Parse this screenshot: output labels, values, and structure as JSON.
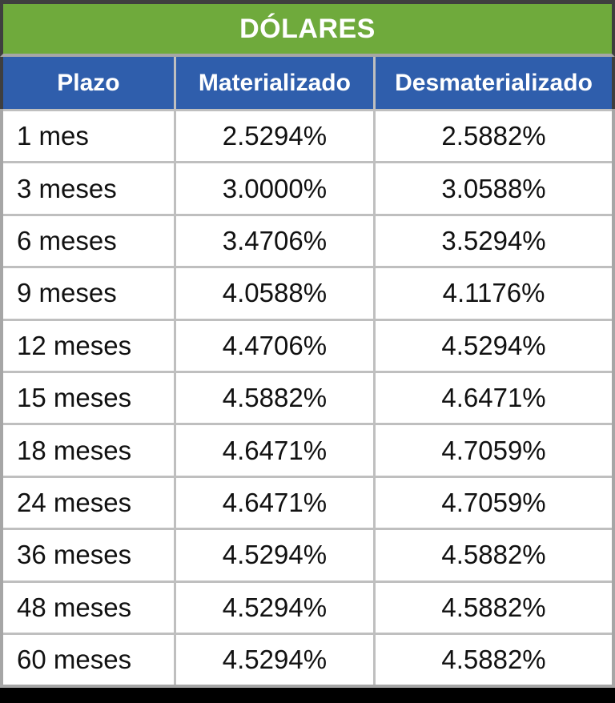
{
  "title": "DÓLARES",
  "columns": {
    "plazo": "Plazo",
    "materializado": "Materializado",
    "desmaterializado": "Desmaterializado"
  },
  "rows": [
    {
      "plazo": "1 mes",
      "materializado": "2.5294%",
      "desmaterializado": "2.5882%"
    },
    {
      "plazo": "3 meses",
      "materializado": "3.0000%",
      "desmaterializado": "3.0588%"
    },
    {
      "plazo": "6 meses",
      "materializado": "3.4706%",
      "desmaterializado": "3.5294%"
    },
    {
      "plazo": "9 meses",
      "materializado": "4.0588%",
      "desmaterializado": "4.1176%"
    },
    {
      "plazo": "12 meses",
      "materializado": "4.4706%",
      "desmaterializado": "4.5294%"
    },
    {
      "plazo": "15 meses",
      "materializado": "4.5882%",
      "desmaterializado": "4.6471%"
    },
    {
      "plazo": "18 meses",
      "materializado": "4.6471%",
      "desmaterializado": "4.7059%"
    },
    {
      "plazo": "24 meses",
      "materializado": "4.6471%",
      "desmaterializado": "4.7059%"
    },
    {
      "plazo": "36 meses",
      "materializado": "4.5294%",
      "desmaterializado": "4.5882%"
    },
    {
      "plazo": "48 meses",
      "materializado": "4.5294%",
      "desmaterializado": "4.5882%"
    },
    {
      "plazo": "60 meses",
      "materializado": "4.5294%",
      "desmaterializado": "4.5882%"
    }
  ],
  "colors": {
    "title_bg": "#6FAA3C",
    "header_bg": "#2F5EAC",
    "header_text": "#FFFFFF",
    "body_text": "#111111",
    "grid_line": "#BFBFBF",
    "outer_border_dark": "#3F3F3F",
    "outer_border_light": "#A6A6A6",
    "bottom_bar": "#000000"
  }
}
